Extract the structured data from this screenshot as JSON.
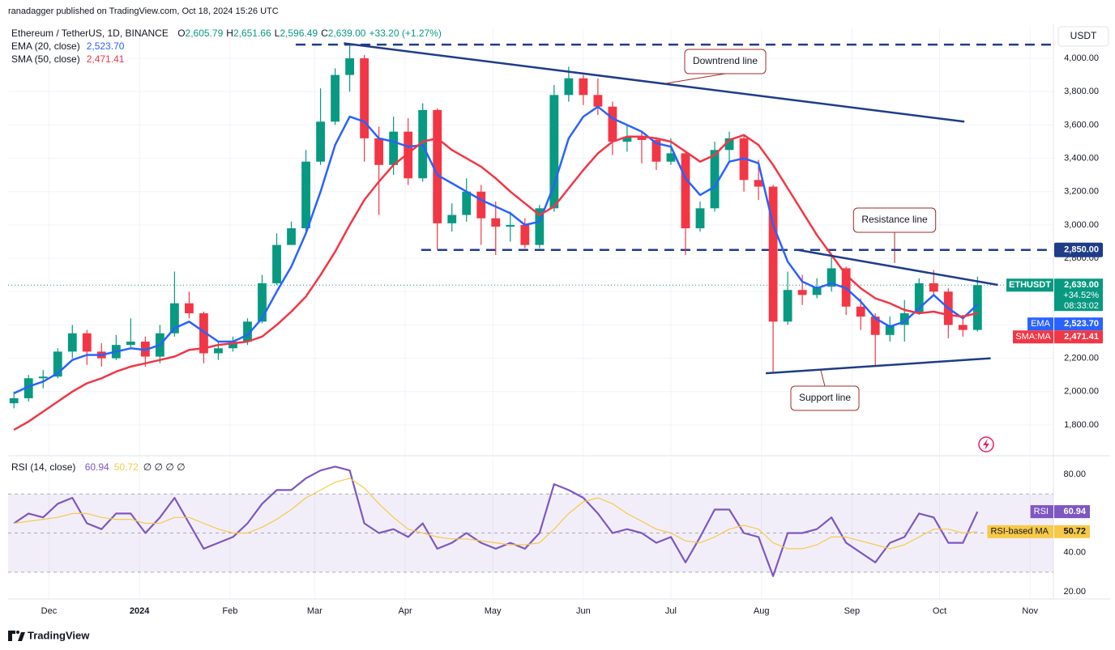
{
  "header": "ranadagger published on TradingView.com, Oct 18, 2024 15:26 UTC",
  "footer": "TradingView",
  "chart_data": [
    {
      "type": "candlestick",
      "symbol": "Ethereum / TetherUS, 1D, BINANCE",
      "ohlc": [
        {
          "key": "O",
          "value": "2,605.79"
        },
        {
          "key": "H",
          "value": "2,651.66"
        },
        {
          "key": "L",
          "value": "2,596.49"
        },
        {
          "key": "C",
          "value": "2,639.00"
        }
      ],
      "change": "+33.20 (+1.27%)",
      "currency": "USDT",
      "up_color": "#089981",
      "down_color": "#f23645",
      "xlim": [
        -0.4,
        71.2
      ],
      "ylim": [
        1620,
        4180
      ],
      "yticks": [
        {
          "value": 1800,
          "label": "1,800.00"
        },
        {
          "value": 2000,
          "label": "2,000.00"
        },
        {
          "value": 2200,
          "label": "2,200.00"
        },
        {
          "value": 2400,
          "label": "2,400.00"
        },
        {
          "value": 2600,
          "label": "2,600.00"
        },
        {
          "value": 2800,
          "label": "2,800.00"
        },
        {
          "value": 3000,
          "label": "3,000.00"
        },
        {
          "value": 3200,
          "label": "3,200.00"
        },
        {
          "value": 3400,
          "label": "3,400.00"
        },
        {
          "value": 3600,
          "label": "3,600.00"
        },
        {
          "value": 3800,
          "label": "3,800.00"
        },
        {
          "value": 4000,
          "label": "4,000.00"
        }
      ],
      "grid": true,
      "candles": [
        [
          1930,
          2000,
          1900,
          1960
        ],
        [
          1960,
          2100,
          1940,
          2080
        ],
        [
          2080,
          2130,
          2020,
          2090
        ],
        [
          2090,
          2260,
          2080,
          2240
        ],
        [
          2240,
          2400,
          2200,
          2350
        ],
        [
          2350,
          2370,
          2160,
          2240
        ],
        [
          2240,
          2290,
          2150,
          2200
        ],
        [
          2200,
          2340,
          2190,
          2280
        ],
        [
          2280,
          2440,
          2260,
          2300
        ],
        [
          2300,
          2330,
          2150,
          2210
        ],
        [
          2210,
          2400,
          2170,
          2350
        ],
        [
          2350,
          2720,
          2330,
          2530
        ],
        [
          2530,
          2600,
          2440,
          2470
        ],
        [
          2470,
          2480,
          2170,
          2230
        ],
        [
          2230,
          2300,
          2190,
          2260
        ],
        [
          2260,
          2330,
          2240,
          2300
        ],
        [
          2300,
          2440,
          2280,
          2420
        ],
        [
          2420,
          2700,
          2410,
          2650
        ],
        [
          2650,
          2950,
          2640,
          2880
        ],
        [
          2880,
          3020,
          2880,
          2980
        ],
        [
          2980,
          3450,
          2960,
          3380
        ],
        [
          3380,
          3820,
          3360,
          3620
        ],
        [
          3620,
          3940,
          3600,
          3900
        ],
        [
          3900,
          4090,
          3800,
          4000
        ],
        [
          4000,
          4020,
          3380,
          3520
        ],
        [
          3520,
          3590,
          3060,
          3360
        ],
        [
          3360,
          3650,
          3300,
          3560
        ],
        [
          3560,
          3640,
          3240,
          3280
        ],
        [
          3280,
          3730,
          3260,
          3690
        ],
        [
          3690,
          3700,
          2850,
          3010
        ],
        [
          3010,
          3130,
          2960,
          3060
        ],
        [
          3060,
          3280,
          3020,
          3200
        ],
        [
          3200,
          3240,
          2880,
          3040
        ],
        [
          3040,
          3140,
          2820,
          2990
        ],
        [
          2990,
          3080,
          2900,
          3000
        ],
        [
          3000,
          3040,
          2860,
          2880
        ],
        [
          2880,
          3120,
          2860,
          3100
        ],
        [
          3100,
          3840,
          3080,
          3780
        ],
        [
          3780,
          3950,
          3740,
          3880
        ],
        [
          3880,
          3900,
          3720,
          3780
        ],
        [
          3780,
          3880,
          3660,
          3710
        ],
        [
          3710,
          3740,
          3420,
          3500
        ],
        [
          3500,
          3600,
          3440,
          3530
        ],
        [
          3530,
          3560,
          3370,
          3510
        ],
        [
          3510,
          3520,
          3330,
          3380
        ],
        [
          3380,
          3520,
          3360,
          3430
        ],
        [
          3430,
          3440,
          2820,
          2980
        ],
        [
          2980,
          3140,
          2960,
          3100
        ],
        [
          3100,
          3500,
          3080,
          3450
        ],
        [
          3450,
          3560,
          3380,
          3520
        ],
        [
          3520,
          3540,
          3200,
          3270
        ],
        [
          3270,
          3390,
          3150,
          3230
        ],
        [
          3230,
          3240,
          2110,
          2420
        ],
        [
          2420,
          2720,
          2400,
          2610
        ],
        [
          2610,
          2700,
          2520,
          2580
        ],
        [
          2580,
          2680,
          2560,
          2630
        ],
        [
          2630,
          2820,
          2600,
          2740
        ],
        [
          2740,
          2750,
          2460,
          2510
        ],
        [
          2510,
          2560,
          2370,
          2450
        ],
        [
          2450,
          2470,
          2150,
          2340
        ],
        [
          2340,
          2450,
          2300,
          2400
        ],
        [
          2400,
          2550,
          2300,
          2470
        ],
        [
          2470,
          2680,
          2460,
          2650
        ],
        [
          2650,
          2730,
          2580,
          2600
        ],
        [
          2600,
          2620,
          2320,
          2400
        ],
        [
          2400,
          2460,
          2330,
          2370
        ],
        [
          2370,
          2690,
          2360,
          2639
        ]
      ],
      "series": [
        {
          "name": "EMA (20, close)",
          "tag": "EMA",
          "color": "#2962ff",
          "last_label": "2,523.70",
          "values": [
            1990,
            2030,
            2060,
            2110,
            2190,
            2220,
            2220,
            2240,
            2260,
            2250,
            2280,
            2380,
            2420,
            2360,
            2300,
            2300,
            2340,
            2440,
            2600,
            2750,
            2950,
            3200,
            3480,
            3650,
            3620,
            3520,
            3500,
            3470,
            3480,
            3300,
            3250,
            3200,
            3150,
            3110,
            3070,
            3000,
            3020,
            3240,
            3520,
            3650,
            3710,
            3640,
            3600,
            3560,
            3490,
            3470,
            3280,
            3180,
            3230,
            3380,
            3400,
            3370,
            3000,
            2780,
            2660,
            2620,
            2650,
            2620,
            2540,
            2440,
            2390,
            2420,
            2500,
            2580,
            2500,
            2440,
            2523.7
          ]
        },
        {
          "name": "SMA (50, close)",
          "tag": "SMA:MA",
          "color": "#f23645",
          "last_label": "2,471.41",
          "values": [
            1770,
            1820,
            1880,
            1940,
            2000,
            2050,
            2080,
            2120,
            2150,
            2170,
            2190,
            2210,
            2250,
            2260,
            2280,
            2290,
            2300,
            2330,
            2400,
            2480,
            2570,
            2700,
            2840,
            3000,
            3150,
            3260,
            3360,
            3430,
            3500,
            3520,
            3450,
            3400,
            3350,
            3280,
            3200,
            3130,
            3060,
            3110,
            3220,
            3330,
            3430,
            3500,
            3530,
            3530,
            3520,
            3500,
            3440,
            3380,
            3420,
            3510,
            3540,
            3480,
            3360,
            3220,
            3080,
            2940,
            2820,
            2700,
            2620,
            2560,
            2530,
            2490,
            2470,
            2480,
            2460,
            2450,
            2471.41
          ]
        }
      ],
      "price_tag": {
        "symbol": "ETHUSDT",
        "value": 2639,
        "label": "2,639.00",
        "change": "+34.52%",
        "countdown": "08:33:02"
      },
      "levels": [
        {
          "value": 2850,
          "label": "2,850.00",
          "x": [
            27.9,
            71.2
          ]
        },
        {
          "value": 4082,
          "x": [
            19.3,
            71.2
          ]
        }
      ],
      "trendlines": [
        {
          "label": "Downtrend line",
          "x": [
            22.6,
            65.1
          ],
          "y": [
            4090,
            3620
          ]
        },
        {
          "label": "Resistance line",
          "x": [
            53.7,
            67.4
          ],
          "y": [
            2850,
            2640
          ]
        },
        {
          "label": "Support line",
          "x": [
            51.5,
            66.9
          ],
          "y": [
            2110,
            2200
          ]
        }
      ],
      "line_color": "#1f3c88"
    },
    {
      "type": "line",
      "title": "RSI (14, close)",
      "extra": "∅ ∅ ∅ ∅",
      "xlim": [
        -0.4,
        71.2
      ],
      "ylim": [
        16.3,
        88.7
      ],
      "yticks": [
        {
          "value": 20,
          "label": "20.00"
        },
        {
          "value": 40,
          "label": "40.00"
        },
        {
          "value": 80,
          "label": "80.00"
        }
      ],
      "bands": [
        30,
        50,
        70
      ],
      "xticks": [
        {
          "value": 2.4,
          "label": "Dec"
        },
        {
          "value": 8.6,
          "label": "2024"
        },
        {
          "value": 14.8,
          "label": "Feb"
        },
        {
          "value": 20.6,
          "label": "Mar"
        },
        {
          "value": 26.8,
          "label": "Apr"
        },
        {
          "value": 32.8,
          "label": "May"
        },
        {
          "value": 39,
          "label": "Jun"
        },
        {
          "value": 45,
          "label": "Jul"
        },
        {
          "value": 51.2,
          "label": "Aug"
        },
        {
          "value": 57.4,
          "label": "Sep"
        },
        {
          "value": 63.4,
          "label": "Oct"
        },
        {
          "value": 69.6,
          "label": "Nov"
        }
      ],
      "series": [
        {
          "name": "RSI",
          "color": "#7e57c2",
          "last_label": "60.94",
          "values": [
            55,
            60,
            58,
            65,
            68,
            55,
            52,
            60,
            60,
            50,
            58,
            68,
            55,
            42,
            45,
            48,
            55,
            65,
            72,
            72,
            78,
            82,
            84,
            82,
            55,
            50,
            52,
            48,
            55,
            42,
            45,
            50,
            45,
            42,
            45,
            42,
            50,
            75,
            72,
            68,
            60,
            50,
            52,
            50,
            45,
            48,
            35,
            48,
            62,
            62,
            50,
            48,
            28,
            50,
            50,
            52,
            58,
            45,
            40,
            35,
            45,
            48,
            60,
            58,
            45,
            45,
            60.94
          ]
        },
        {
          "name": "RSI-based MA",
          "color": "#f7c948",
          "last_label": "50.72",
          "values": [
            55,
            56,
            57,
            58,
            60,
            60,
            58,
            57,
            57,
            55,
            55,
            58,
            58,
            55,
            52,
            50,
            50,
            53,
            57,
            62,
            68,
            72,
            76,
            78,
            73,
            65,
            58,
            52,
            50,
            48,
            47,
            47,
            46,
            45,
            44,
            44,
            45,
            52,
            60,
            66,
            68,
            65,
            60,
            56,
            52,
            50,
            46,
            45,
            48,
            52,
            54,
            52,
            45,
            42,
            42,
            44,
            48,
            48,
            46,
            44,
            42,
            44,
            48,
            52,
            52,
            50,
            50.72
          ]
        }
      ]
    }
  ]
}
